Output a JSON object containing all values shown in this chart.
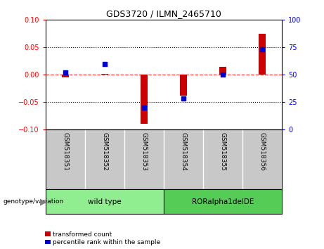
{
  "title": "GDS3720 / ILMN_2465710",
  "samples": [
    "GSM518351",
    "GSM518352",
    "GSM518353",
    "GSM518354",
    "GSM518355",
    "GSM518356"
  ],
  "transformed_count": [
    -0.005,
    0.002,
    -0.09,
    -0.038,
    0.015,
    0.075
  ],
  "percentile_rank": [
    52,
    60,
    20,
    28,
    50,
    73
  ],
  "ylim_left": [
    -0.1,
    0.1
  ],
  "ylim_right": [
    0,
    100
  ],
  "yticks_left": [
    -0.1,
    -0.05,
    0,
    0.05,
    0.1
  ],
  "yticks_right": [
    0,
    25,
    50,
    75,
    100
  ],
  "bar_color": "#CC0000",
  "dot_color": "#0000CC",
  "zero_line_color": "#FF4444",
  "background_plot": "#FFFFFF",
  "background_tick": "#C8C8C8",
  "background_group_wt": "#90EE90",
  "background_group_ro": "#55CC55",
  "legend_labels": [
    "transformed count",
    "percentile rank within the sample"
  ],
  "bar_width": 0.18,
  "group_wt_range": [
    0,
    2
  ],
  "group_ro_range": [
    3,
    5
  ],
  "group_wt_label": "wild type",
  "group_ro_label": "RORalpha1delDE",
  "genotype_label": "genotype/variation"
}
